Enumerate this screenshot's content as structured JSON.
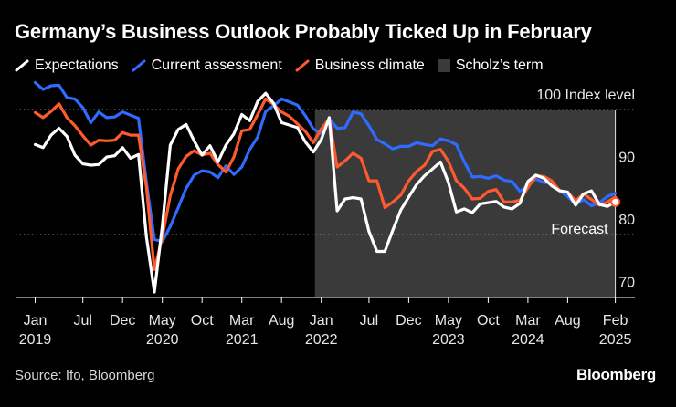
{
  "title": "Germany’s Business Outlook Probably Ticked Up in February",
  "legend": {
    "expectations": "Expectations",
    "current": "Current assessment",
    "climate": "Business climate",
    "term": "Scholz’s term"
  },
  "source": "Source: Ifo, Bloomberg",
  "brand": "Bloomberg",
  "colors": {
    "background": "#000000",
    "expectations": "#ffffff",
    "current": "#2f6bff",
    "climate": "#ff5a2e",
    "term_shade": "#3a3a3a"
  },
  "chart_data": {
    "type": "line",
    "title": "Germany’s Business Outlook Probably Ticked Up in February",
    "ylabel": "Index level",
    "ylim": [
      68,
      102
    ],
    "y_ticks": [
      {
        "value": 100,
        "label": "100 Index level"
      },
      {
        "value": 90,
        "label": "90"
      },
      {
        "value": 80,
        "label": "80"
      },
      {
        "value": 70,
        "label": "70"
      }
    ],
    "x_ticks": [
      {
        "value": 0,
        "month": "Jan",
        "year": "2019"
      },
      {
        "value": 6,
        "month": "Jul",
        "year": ""
      },
      {
        "value": 11,
        "month": "Dec",
        "year": ""
      },
      {
        "value": 16,
        "month": "May",
        "year": "2020"
      },
      {
        "value": 21,
        "month": "Oct",
        "year": ""
      },
      {
        "value": 26,
        "month": "Mar",
        "year": "2021"
      },
      {
        "value": 31,
        "month": "Aug",
        "year": ""
      },
      {
        "value": 36,
        "month": "Jan",
        "year": "2022"
      },
      {
        "value": 42,
        "month": "Jul",
        "year": ""
      },
      {
        "value": 47,
        "month": "Dec",
        "year": ""
      },
      {
        "value": 52,
        "month": "May",
        "year": "2023"
      },
      {
        "value": 57,
        "month": "Oct",
        "year": ""
      },
      {
        "value": 62,
        "month": "Mar",
        "year": "2024"
      },
      {
        "value": 67,
        "month": "Aug",
        "year": ""
      },
      {
        "value": 73,
        "month": "Feb",
        "year": "2025"
      }
    ],
    "x_range": [
      -0.5,
      74.5
    ],
    "x_note": "x = month index, 0 = Jan 2019",
    "shaded_region": {
      "label": "Scholz’s term",
      "x_start": 35.2,
      "x_end": 73
    },
    "annotations": [
      {
        "text": "Forecast",
        "x": 73,
        "y": 80
      }
    ],
    "forecast_marker": {
      "x": 73,
      "y": 85.2
    },
    "series": [
      {
        "name": "Expectations",
        "values": [
          94.4,
          93.9,
          95.9,
          97.0,
          95.7,
          92.7,
          91.3,
          91.1,
          91.2,
          92.4,
          92.6,
          93.9,
          92.2,
          92.8,
          79.6,
          70.8,
          81.4,
          94.3,
          96.8,
          97.6,
          95.0,
          92.7,
          94.2,
          91.6,
          94.3,
          96.1,
          99.2,
          98.2,
          101.3,
          102.6,
          101.0,
          97.9,
          97.5,
          97.1,
          94.8,
          93.2,
          95.2,
          98.7,
          83.8,
          85.7,
          85.9,
          85.7,
          80.5,
          77.3,
          77.3,
          80.7,
          83.9,
          86.0,
          88.0,
          89.4,
          90.5,
          91.6,
          88.3,
          83.6,
          84.1,
          83.5,
          84.9,
          85.1,
          85.3,
          84.4,
          84.1,
          85.0,
          88.5,
          89.5,
          89.0,
          87.8,
          87.0,
          86.8,
          84.7,
          86.5,
          87.0,
          84.8,
          84.5,
          85.2
        ]
      },
      {
        "name": "Current assessment",
        "values": [
          104.3,
          103.2,
          103.8,
          103.9,
          101.9,
          101.7,
          100.3,
          97.9,
          99.6,
          98.7,
          98.8,
          99.6,
          99.1,
          98.6,
          88.3,
          79.2,
          78.9,
          81.3,
          84.3,
          87.4,
          89.5,
          90.2,
          90.0,
          89.1,
          91.0,
          89.6,
          90.8,
          93.6,
          95.6,
          99.7,
          100.6,
          101.7,
          101.2,
          100.7,
          99.0,
          96.9,
          96.1,
          98.5,
          97.0,
          97.1,
          99.6,
          99.3,
          97.4,
          95.2,
          94.5,
          93.7,
          94.1,
          94.1,
          94.7,
          94.4,
          94.2,
          95.3,
          95.0,
          94.4,
          91.6,
          89.2,
          89.3,
          89.0,
          89.4,
          88.7,
          88.5,
          86.9,
          87.9,
          88.9,
          88.3,
          88.3,
          87.0,
          86.1,
          84.8,
          85.6,
          84.6,
          85.1,
          86.1,
          86.6
        ]
      },
      {
        "name": "Business climate",
        "values": [
          99.5,
          98.7,
          99.7,
          100.9,
          98.7,
          97.4,
          95.8,
          94.3,
          95.1,
          95.0,
          95.1,
          96.3,
          95.9,
          95.9,
          87.6,
          74.4,
          79.6,
          86.2,
          90.5,
          92.5,
          93.4,
          92.7,
          93.0,
          91.2,
          90.0,
          92.4,
          96.6,
          96.8,
          99.2,
          101.7,
          100.8,
          99.6,
          98.9,
          97.7,
          96.5,
          94.7,
          96.9,
          98.5,
          90.8,
          91.8,
          93.0,
          92.2,
          88.6,
          88.6,
          84.3,
          85.2,
          86.3,
          88.6,
          90.1,
          91.1,
          93.3,
          93.6,
          91.7,
          88.6,
          87.4,
          85.7,
          85.8,
          86.9,
          87.2,
          85.2,
          85.2,
          85.5,
          87.5,
          89.4,
          89.3,
          88.6,
          87.0,
          86.8,
          85.4,
          86.5,
          85.6,
          84.7,
          85.2,
          86.0
        ]
      }
    ]
  }
}
